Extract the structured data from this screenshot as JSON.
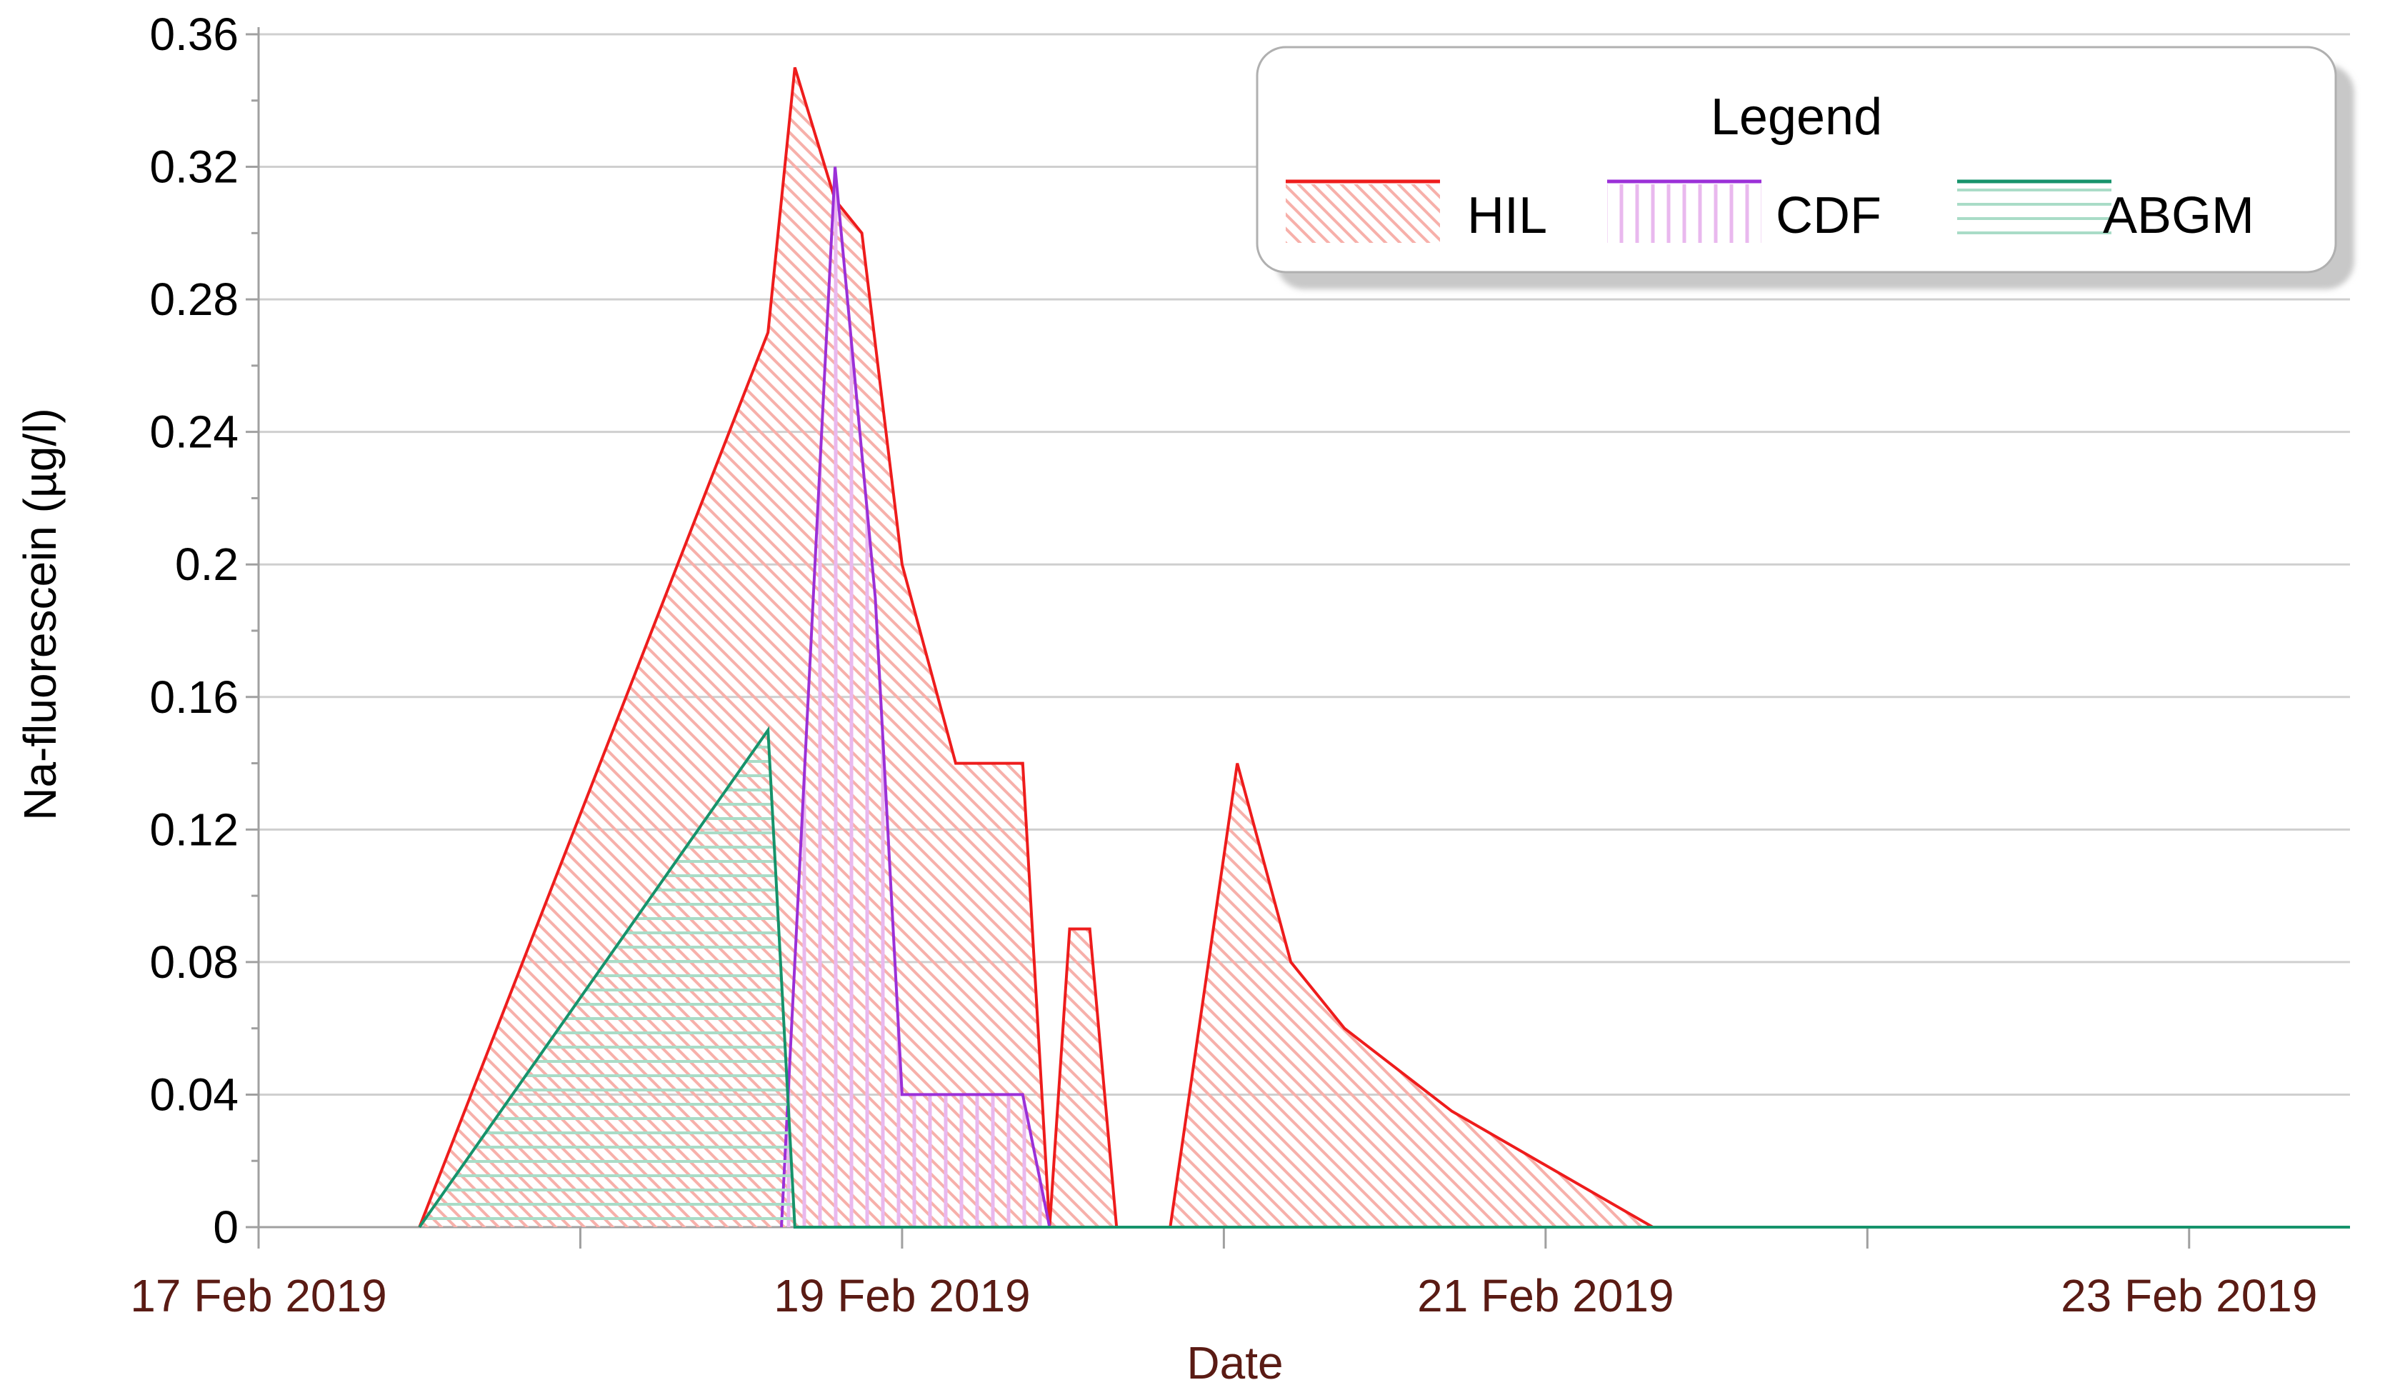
{
  "chart_data": {
    "type": "area",
    "xlabel": "Date",
    "ylabel": "Na-fluorescein (µg/l)",
    "xlim": [
      "2019-02-17",
      "2019-02-23T12:00"
    ],
    "ylim": [
      0,
      0.36
    ],
    "x_ticks": [
      "2019-02-17",
      "2019-02-19",
      "2019-02-21",
      "2019-02-23"
    ],
    "x_tick_labels": [
      "17 Feb 2019",
      "19 Feb 2019",
      "21 Feb 2019",
      "23 Feb 2019"
    ],
    "x_minor_ticks": [
      "2019-02-18",
      "2019-02-20",
      "2019-02-22"
    ],
    "y_ticks": [
      0,
      0.04,
      0.08,
      0.12,
      0.16,
      0.2,
      0.24,
      0.28,
      0.32,
      0.36
    ],
    "y_tick_labels": [
      "0",
      "0.04",
      "0.08",
      "0.12",
      "0.16",
      "0.2",
      "0.24",
      "0.28",
      "0.32",
      "0.36"
    ],
    "grid": "horizontal",
    "legend": {
      "title": "Legend",
      "position": "top-right"
    },
    "series": [
      {
        "name": "HIL",
        "color": "#ee1c1c",
        "fill_color": "#f7b0aa",
        "hatch": "diagonal",
        "x": [
          "2019-02-17T12:00",
          "2019-02-18T14:00",
          "2019-02-18T16:00",
          "2019-02-18T19:00",
          "2019-02-18T21:00",
          "2019-02-19T00:00",
          "2019-02-19T04:00",
          "2019-02-19T09:00",
          "2019-02-19T11:00",
          "2019-02-19T12:30",
          "2019-02-19T14:00",
          "2019-02-19T16:00",
          "2019-02-19T17:30",
          "2019-02-19T20:00",
          "2019-02-20T01:00",
          "2019-02-20T05:00",
          "2019-02-20T09:00",
          "2019-02-20T17:00",
          "2019-02-21T08:00",
          "2019-02-23T12:00"
        ],
        "values": [
          0,
          0.27,
          0.35,
          0.31,
          0.3,
          0.2,
          0.14,
          0.14,
          0,
          0.09,
          0.09,
          0,
          null,
          0,
          0.14,
          0.08,
          0.06,
          0.035,
          0,
          0
        ]
      },
      {
        "name": "CDF",
        "color": "#9b30d8",
        "fill_color": "#e9b8ee",
        "hatch": "vertical",
        "x": [
          "2019-02-18T15:00",
          "2019-02-18T19:00",
          "2019-02-18T22:00",
          "2019-02-19T00:00",
          "2019-02-19T09:00",
          "2019-02-19T11:00"
        ],
        "values": [
          0,
          0.32,
          0.19,
          0.04,
          0.04,
          0
        ]
      },
      {
        "name": "ABGM",
        "color": "#16936b",
        "fill_color": "#a9dcc7",
        "hatch": "horizontal",
        "x": [
          "2019-02-17T12:00",
          "2019-02-18T14:00",
          "2019-02-18T16:00",
          "2019-02-23T12:00"
        ],
        "values": [
          0,
          0.15,
          0,
          0
        ]
      }
    ]
  }
}
